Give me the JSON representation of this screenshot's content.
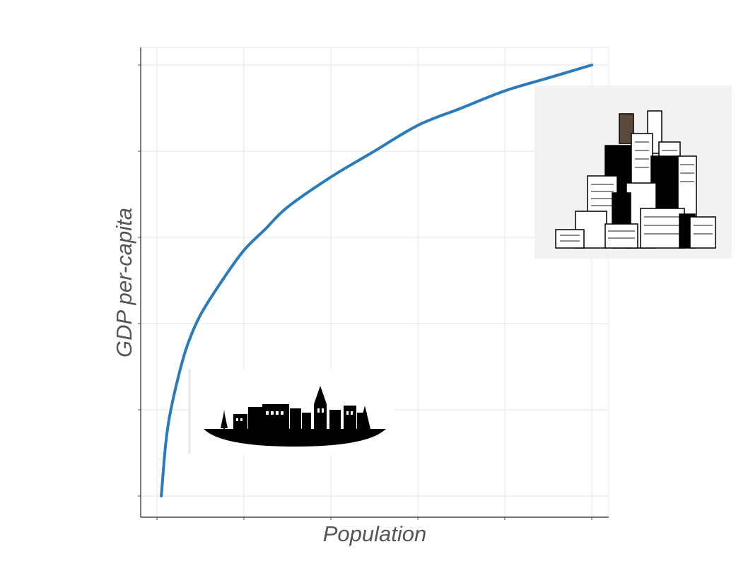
{
  "chart_data": {
    "type": "line",
    "title": "",
    "xlabel": "Population",
    "ylabel": "GDP per-capita",
    "show_tick_labels": false,
    "grid": true,
    "xlim": [
      0,
      1.1
    ],
    "ylim": [
      0,
      1.05
    ],
    "x_gridlines": [
      0.0,
      0.2,
      0.4,
      0.6,
      0.8,
      1.0
    ],
    "y_gridlines": [
      0.0,
      0.2,
      0.4,
      0.6,
      0.8,
      1.0
    ],
    "series": [
      {
        "color": "#2b7bba",
        "x": [
          0.01,
          0.02,
          0.03,
          0.05,
          0.07,
          0.1,
          0.15,
          0.2,
          0.25,
          0.3,
          0.4,
          0.5,
          0.6,
          0.7,
          0.8,
          0.9,
          1.0
        ],
        "y": [
          0.0,
          0.12,
          0.19,
          0.28,
          0.35,
          0.42,
          0.5,
          0.57,
          0.62,
          0.67,
          0.74,
          0.8,
          0.86,
          0.9,
          0.94,
          0.97,
          1.0
        ]
      }
    ],
    "illustrations": [
      {
        "name": "village",
        "icon": "village-silhouette-icon",
        "near_x": 0.2,
        "near_y": 0.2
      },
      {
        "name": "metropolis",
        "icon": "skyscraper-city-icon",
        "near_x": 1.0,
        "near_y": 0.82
      }
    ]
  }
}
